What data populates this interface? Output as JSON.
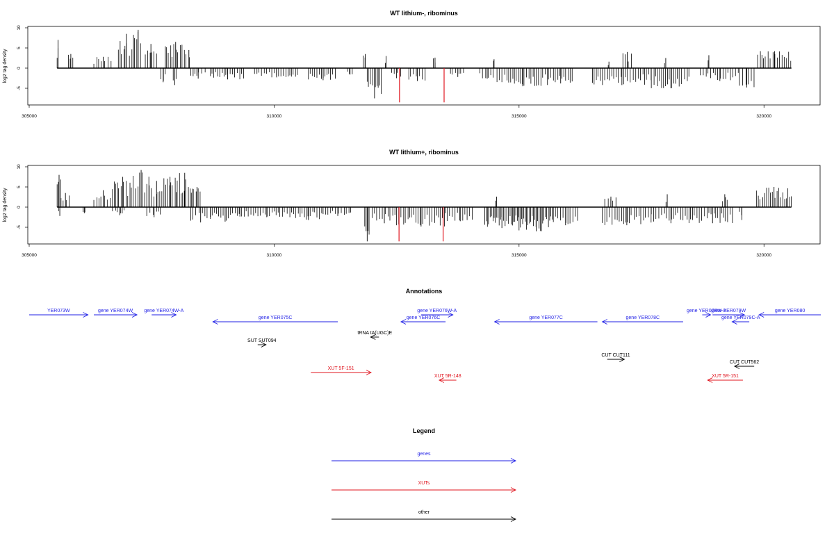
{
  "chart_data": [
    {
      "type": "bar",
      "title": "WT lithium-, ribominus",
      "ylabel": "log2 tag density",
      "xlim": [
        305000,
        321160
      ],
      "ylim": [
        -9,
        10
      ],
      "x_ticks": [
        305000,
        310000,
        315000,
        320000
      ],
      "y_ticks": [
        -5,
        0,
        5,
        10
      ],
      "x_tick_labels": [
        "305000",
        "310000",
        "315000",
        "320000"
      ],
      "y_tick_labels": [
        "-5",
        "0",
        "5",
        "10"
      ],
      "data_range": [
        305570,
        320560
      ],
      "positive_runs": [
        [
          305570,
          305610,
          7
        ],
        [
          305800,
          305900,
          3.5
        ],
        [
          306320,
          306700,
          2.8
        ],
        [
          306820,
          307150,
          8.5
        ],
        [
          307150,
          307300,
          9.5
        ],
        [
          307370,
          307600,
          6
        ],
        [
          307780,
          308200,
          6.5
        ],
        [
          308200,
          308320,
          4.5
        ],
        [
          311820,
          311900,
          3.5
        ],
        [
          312270,
          312300,
          3
        ],
        [
          313250,
          313320,
          2.6
        ],
        [
          314480,
          314500,
          2.2
        ],
        [
          316820,
          316850,
          1.6
        ],
        [
          317120,
          317300,
          4
        ],
        [
          317970,
          318020,
          2.5
        ],
        [
          318860,
          318890,
          3.2
        ],
        [
          319870,
          320560,
          4.2
        ]
      ],
      "negative_runs": [
        [
          307690,
          307780,
          -3.5
        ],
        [
          307940,
          308000,
          -4.2
        ],
        [
          308300,
          308600,
          -2.6
        ],
        [
          308700,
          309400,
          -2.8
        ],
        [
          309600,
          310500,
          -2.3
        ],
        [
          310700,
          311300,
          -3
        ],
        [
          311500,
          311600,
          -1.6
        ],
        [
          311900,
          312200,
          -7.5
        ],
        [
          312400,
          312600,
          -2.5
        ],
        [
          312750,
          313100,
          -3.2
        ],
        [
          313600,
          313900,
          -2.2
        ],
        [
          314200,
          314500,
          -2.6
        ],
        [
          314550,
          315600,
          -4.5
        ],
        [
          315600,
          316100,
          -3.8
        ],
        [
          316500,
          317700,
          -4.2
        ],
        [
          317700,
          318500,
          -5
        ],
        [
          318700,
          319500,
          -3.2
        ],
        [
          319500,
          319800,
          -4.8
        ]
      ],
      "highlight_values": [
        [
          312560,
          -8.5
        ],
        [
          313470,
          -8.5
        ]
      ],
      "highlight_color": "#e0141e"
    },
    {
      "type": "bar",
      "title": "WT lithium+, ribominus",
      "ylabel": "log2 tag density",
      "xlim": [
        305000,
        321160
      ],
      "ylim": [
        -9,
        10
      ],
      "x_ticks": [
        305000,
        310000,
        315000,
        320000
      ],
      "y_ticks": [
        -5,
        0,
        5,
        10
      ],
      "x_tick_labels": [
        "305000",
        "310000",
        "315000",
        "320000"
      ],
      "y_tick_labels": [
        "-5",
        "0",
        "5",
        "10"
      ],
      "data_range": [
        305570,
        320560
      ],
      "positive_runs": [
        [
          305570,
          305650,
          8
        ],
        [
          305650,
          305830,
          3.5
        ],
        [
          306320,
          306700,
          4.2
        ],
        [
          306700,
          307120,
          7.5
        ],
        [
          307120,
          307450,
          9.2
        ],
        [
          307450,
          307750,
          6.5
        ],
        [
          307750,
          308000,
          7.5
        ],
        [
          308000,
          308350,
          8.5
        ],
        [
          308350,
          308500,
          5
        ],
        [
          314520,
          314560,
          2.6
        ],
        [
          316750,
          317000,
          2.6
        ],
        [
          318000,
          318050,
          3.2
        ],
        [
          319150,
          319250,
          3.2
        ],
        [
          319850,
          320560,
          5
        ]
      ],
      "negative_runs": [
        [
          305600,
          305650,
          -2.2
        ],
        [
          306100,
          306150,
          -1.5
        ],
        [
          306700,
          307000,
          -2
        ],
        [
          307400,
          307700,
          -2.5
        ],
        [
          308300,
          308700,
          -3.8
        ],
        [
          308700,
          309300,
          -3.6
        ],
        [
          309300,
          310400,
          -2.5
        ],
        [
          310400,
          311000,
          -3.2
        ],
        [
          311000,
          311600,
          -2.2
        ],
        [
          311850,
          311950,
          -8.5
        ],
        [
          312000,
          312500,
          -4
        ],
        [
          312500,
          313500,
          -4.8
        ],
        [
          313500,
          314100,
          -3.5
        ],
        [
          314300,
          315000,
          -5.2
        ],
        [
          315000,
          315700,
          -6
        ],
        [
          315700,
          316200,
          -4.5
        ],
        [
          316700,
          317700,
          -4.5
        ],
        [
          317700,
          318500,
          -4
        ],
        [
          318500,
          319400,
          -4
        ],
        [
          319500,
          319600,
          -3.2
        ]
      ],
      "highlight_values": [
        [
          312550,
          -8.5
        ],
        [
          313450,
          -8.5
        ]
      ],
      "highlight_color": "#e0141e"
    }
  ],
  "annotations": {
    "title": "Annotations",
    "items": [
      {
        "label": "YER073W",
        "kind": "gene",
        "strand": "+",
        "from": 305000,
        "to": 306200,
        "row": 0
      },
      {
        "label": "gene YER074W",
        "kind": "gene",
        "strand": "+",
        "from": 306320,
        "to": 307200,
        "row": 0
      },
      {
        "label": "gene YER074W-A",
        "kind": "gene",
        "strand": "+",
        "from": 307500,
        "to": 308000,
        "row": 0
      },
      {
        "label": "gene YER075C",
        "kind": "gene",
        "strand": "-",
        "from": 308750,
        "to": 311300,
        "row": 1
      },
      {
        "label": "gene YER076W-A",
        "kind": "gene",
        "strand": "+",
        "from": 313000,
        "to": 313650,
        "row": 0
      },
      {
        "label": "gene YER076C",
        "kind": "gene",
        "strand": "-",
        "from": 312590,
        "to": 313500,
        "row": 1
      },
      {
        "label": "gene YER077C",
        "kind": "gene",
        "strand": "-",
        "from": 314500,
        "to": 316600,
        "row": 1
      },
      {
        "label": "gene YER078C",
        "kind": "gene",
        "strand": "-",
        "from": 316700,
        "to": 318350,
        "row": 1
      },
      {
        "label": "gene YER078W-A",
        "kind": "gene",
        "strand": "+",
        "from": 318750,
        "to": 318900,
        "row": 0
      },
      {
        "label": "gene YER079W",
        "kind": "gene",
        "strand": "+",
        "from": 318950,
        "to": 319600,
        "row": 0
      },
      {
        "label": "gene YER079C-A",
        "kind": "gene",
        "strand": "-",
        "from": 319350,
        "to": 319700,
        "row": 1
      },
      {
        "label": "gene YER080",
        "kind": "gene",
        "strand": "-",
        "from": 319900,
        "to": 321160,
        "row": 0
      },
      {
        "label": "tRNA tA(UGC)E",
        "kind": "other",
        "strand": "-",
        "from": 312010,
        "to": 312100,
        "row": 2
      },
      {
        "label": "SUT SUT094",
        "kind": "other",
        "strand": "+",
        "from": 309700,
        "to": 309800,
        "row": 3
      },
      {
        "label": "CUT CUT111",
        "kind": "other",
        "strand": "+",
        "from": 316800,
        "to": 317150,
        "row": 4
      },
      {
        "label": "CUT CUT562",
        "kind": "other",
        "strand": "-",
        "from": 319400,
        "to": 319800,
        "row": 5
      },
      {
        "label": "XUT 5F-151",
        "kind": "xut",
        "strand": "+",
        "from": 310750,
        "to": 311980,
        "row": 6
      },
      {
        "label": "XUT 5R-148",
        "kind": "xut",
        "strand": "-",
        "from": 313370,
        "to": 313720,
        "row": 7
      },
      {
        "label": "XUT 5R-151",
        "kind": "xut",
        "strand": "-",
        "from": 318850,
        "to": 319570,
        "row": 7
      }
    ]
  },
  "legend": {
    "title": "Legend",
    "items": [
      {
        "label": "genes",
        "kind": "gene"
      },
      {
        "label": "XUTs",
        "kind": "xut"
      },
      {
        "label": "other",
        "kind": "other"
      }
    ]
  },
  "colors": {
    "gene": "#1f1fe6",
    "xut": "#e0141e",
    "other": "#000000",
    "bars": "#000000",
    "highlight": "#e0141e"
  }
}
